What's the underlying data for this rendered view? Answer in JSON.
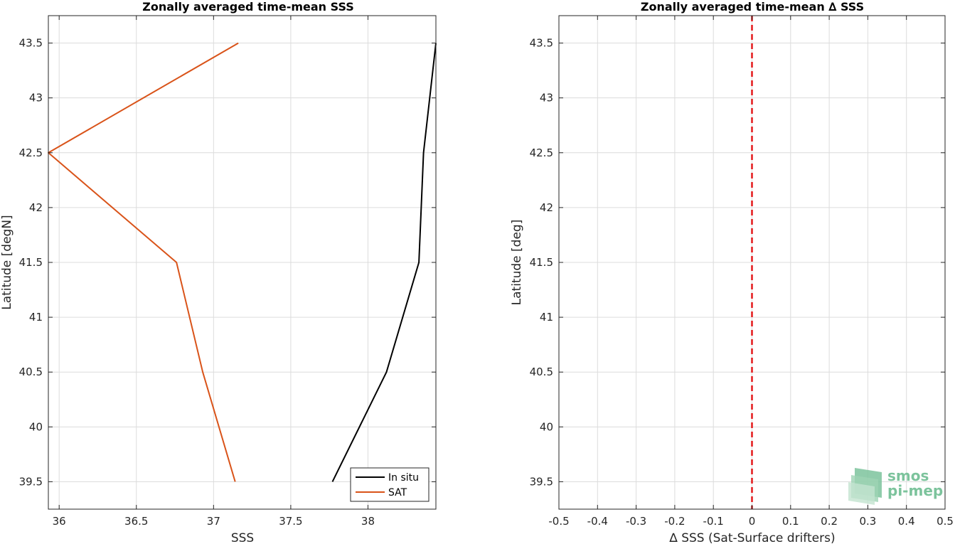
{
  "chart_data": [
    {
      "type": "line",
      "title": "Zonally averaged time-mean SSS",
      "xlabel": "SSS",
      "ylabel": "Latitude [degN]",
      "xlim": [
        35.93,
        38.44
      ],
      "ylim": [
        39.25,
        43.75
      ],
      "xticks": [
        "36",
        "36.5",
        "37",
        "37.5",
        "38"
      ],
      "xtick_values": [
        36,
        36.5,
        37,
        37.5,
        38
      ],
      "yticks": [
        "39.5",
        "40",
        "40.5",
        "41",
        "41.5",
        "42",
        "42.5",
        "43",
        "43.5"
      ],
      "ytick_values": [
        39.5,
        40,
        40.5,
        41,
        41.5,
        42,
        42.5,
        43,
        43.5
      ],
      "grid": true,
      "legend": "bottom-right",
      "series": [
        {
          "name": "In situ",
          "color": "#000000",
          "points": [
            {
              "x": 37.77,
              "y": 39.5
            },
            {
              "x": 38.12,
              "y": 40.5
            },
            {
              "x": 38.33,
              "y": 41.5
            },
            {
              "x": 38.36,
              "y": 42.5
            },
            {
              "x": 38.44,
              "y": 43.5
            }
          ]
        },
        {
          "name": "SAT",
          "color": "#d95319",
          "points": [
            {
              "x": 37.14,
              "y": 39.5
            },
            {
              "x": 36.93,
              "y": 40.5
            },
            {
              "x": 36.76,
              "y": 41.5
            },
            {
              "x": 35.93,
              "y": 42.5
            },
            {
              "x": 37.16,
              "y": 43.5
            }
          ]
        }
      ]
    },
    {
      "type": "line",
      "title": "Zonally averaged time-mean ∆ SSS",
      "xlabel": "∆ SSS (Sat-Surface drifters)",
      "ylabel": "Latitude [deg]",
      "xlim": [
        -0.5,
        0.5
      ],
      "ylim": [
        39.25,
        43.75
      ],
      "xticks": [
        "-0.5",
        "-0.4",
        "-0.3",
        "-0.2",
        "-0.1",
        "0",
        "0.1",
        "0.2",
        "0.3",
        "0.4",
        "0.5"
      ],
      "xtick_values": [
        -0.5,
        -0.4,
        -0.3,
        -0.2,
        -0.1,
        0,
        0.1,
        0.2,
        0.3,
        0.4,
        0.5
      ],
      "yticks": [
        "39.5",
        "40",
        "40.5",
        "41",
        "41.5",
        "42",
        "42.5",
        "43",
        "43.5"
      ],
      "ytick_values": [
        39.5,
        40,
        40.5,
        41,
        41.5,
        42,
        42.5,
        43,
        43.5
      ],
      "grid": true,
      "reference_line": {
        "x": 0,
        "color": "#e41a1c",
        "style": "dashed"
      }
    }
  ],
  "logo": {
    "line1": "smos",
    "line2": "pi-mep",
    "color": "#7cc39c"
  }
}
